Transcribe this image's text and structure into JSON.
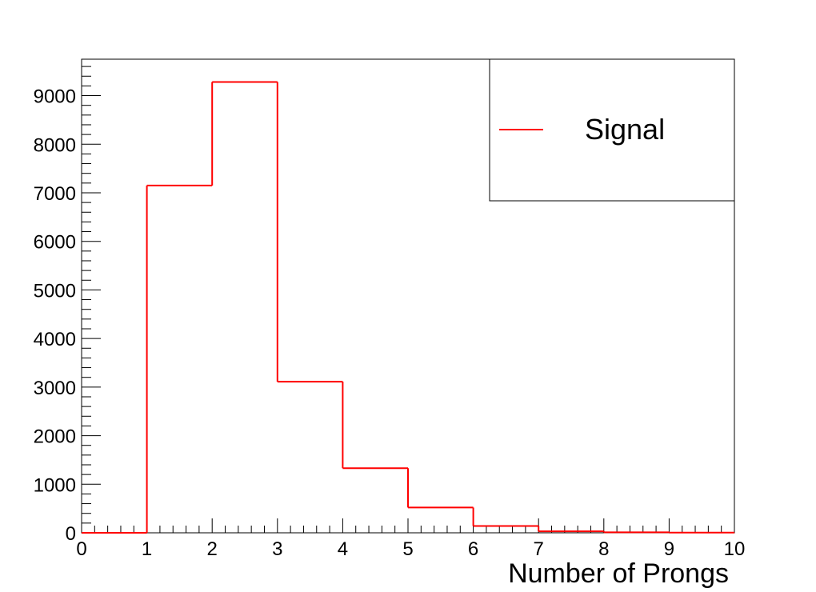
{
  "chart_data": {
    "type": "bar",
    "style": "step-histogram",
    "bins": [
      {
        "lo": 0,
        "hi": 1,
        "value": 0
      },
      {
        "lo": 1,
        "hi": 2,
        "value": 7150
      },
      {
        "lo": 2,
        "hi": 3,
        "value": 9280
      },
      {
        "lo": 3,
        "hi": 4,
        "value": 3110
      },
      {
        "lo": 4,
        "hi": 5,
        "value": 1330
      },
      {
        "lo": 5,
        "hi": 6,
        "value": 520
      },
      {
        "lo": 6,
        "hi": 7,
        "value": 140
      },
      {
        "lo": 7,
        "hi": 8,
        "value": 30
      },
      {
        "lo": 8,
        "hi": 9,
        "value": 10
      },
      {
        "lo": 9,
        "hi": 10,
        "value": 5
      }
    ],
    "xlim": [
      0,
      10
    ],
    "ylim": [
      0,
      9750
    ],
    "xticks": [
      "0",
      "1",
      "2",
      "3",
      "4",
      "5",
      "6",
      "7",
      "8",
      "9",
      "10"
    ],
    "yticks": [
      "0",
      "1000",
      "2000",
      "3000",
      "4000",
      "5000",
      "6000",
      "7000",
      "8000",
      "9000"
    ],
    "xlabel": "Number of Prongs",
    "ylabel": "",
    "title": "",
    "grid": false,
    "legend_position": "top-right",
    "series": [
      {
        "name": "Signal",
        "color": "#ff0000"
      }
    ]
  }
}
